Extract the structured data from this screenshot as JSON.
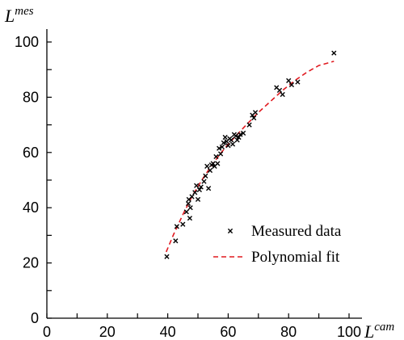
{
  "chart_data": {
    "type": "scatter",
    "xlabel_main": "L",
    "xlabel_sup": "cam",
    "ylabel_main": "L",
    "ylabel_sup": "mes",
    "xlim": [
      0,
      100
    ],
    "ylim": [
      0,
      100
    ],
    "xticks": [
      0,
      20,
      40,
      60,
      80,
      100
    ],
    "yticks": [
      0,
      20,
      40,
      60,
      80,
      100
    ],
    "grid": false,
    "legend_position": "right",
    "series": [
      {
        "name": "Measured data",
        "kind": "scatter",
        "marker": "x",
        "color": "#000000",
        "points": [
          [
            39.7,
            22.3
          ],
          [
            42.6,
            28.0
          ],
          [
            43.0,
            33.2
          ],
          [
            45.0,
            34.0
          ],
          [
            46.2,
            38.5
          ],
          [
            46.8,
            41.5
          ],
          [
            47.0,
            43.0
          ],
          [
            47.3,
            36.2
          ],
          [
            47.5,
            40.0
          ],
          [
            48.0,
            44.0
          ],
          [
            49.0,
            45.5
          ],
          [
            49.5,
            48.0
          ],
          [
            50.0,
            43.0
          ],
          [
            50.5,
            46.5
          ],
          [
            51.0,
            47.5
          ],
          [
            52.0,
            49.5
          ],
          [
            52.5,
            51.5
          ],
          [
            53.0,
            55.0
          ],
          [
            53.5,
            47.0
          ],
          [
            54.0,
            53.5
          ],
          [
            54.5,
            55.5
          ],
          [
            55.0,
            56.0
          ],
          [
            55.5,
            55.0
          ],
          [
            56.0,
            58.5
          ],
          [
            56.5,
            56.0
          ],
          [
            57.0,
            61.5
          ],
          [
            57.5,
            59.5
          ],
          [
            58.0,
            62.0
          ],
          [
            58.5,
            63.5
          ],
          [
            59.0,
            65.5
          ],
          [
            59.5,
            64.0
          ],
          [
            60.0,
            62.5
          ],
          [
            60.5,
            65.0
          ],
          [
            61.0,
            64.5
          ],
          [
            61.5,
            63.0
          ],
          [
            62.0,
            66.5
          ],
          [
            62.5,
            66.0
          ],
          [
            63.0,
            64.5
          ],
          [
            63.5,
            65.5
          ],
          [
            64.0,
            66.5
          ],
          [
            65.0,
            67.0
          ],
          [
            67.0,
            70.0
          ],
          [
            68.0,
            73.5
          ],
          [
            68.5,
            72.5
          ],
          [
            69.0,
            74.5
          ],
          [
            76.0,
            83.5
          ],
          [
            77.0,
            82.5
          ],
          [
            78.0,
            81.0
          ],
          [
            80.0,
            86.0
          ],
          [
            81.0,
            84.5
          ],
          [
            83.0,
            85.5
          ],
          [
            95.0,
            96.0
          ]
        ]
      },
      {
        "name": "Polynomial fit",
        "kind": "line",
        "style": "dashed",
        "color": "#e0191f",
        "points": [
          [
            39.5,
            24.0
          ],
          [
            42.0,
            30.5
          ],
          [
            45.0,
            37.5
          ],
          [
            48.0,
            44.0
          ],
          [
            51.0,
            49.5
          ],
          [
            54.0,
            54.5
          ],
          [
            57.0,
            59.0
          ],
          [
            60.0,
            63.0
          ],
          [
            63.0,
            66.5
          ],
          [
            66.0,
            70.0
          ],
          [
            70.0,
            74.5
          ],
          [
            74.0,
            78.5
          ],
          [
            78.0,
            82.5
          ],
          [
            82.0,
            86.0
          ],
          [
            86.0,
            89.0
          ],
          [
            90.0,
            91.5
          ],
          [
            95.0,
            93.0
          ]
        ]
      }
    ]
  }
}
